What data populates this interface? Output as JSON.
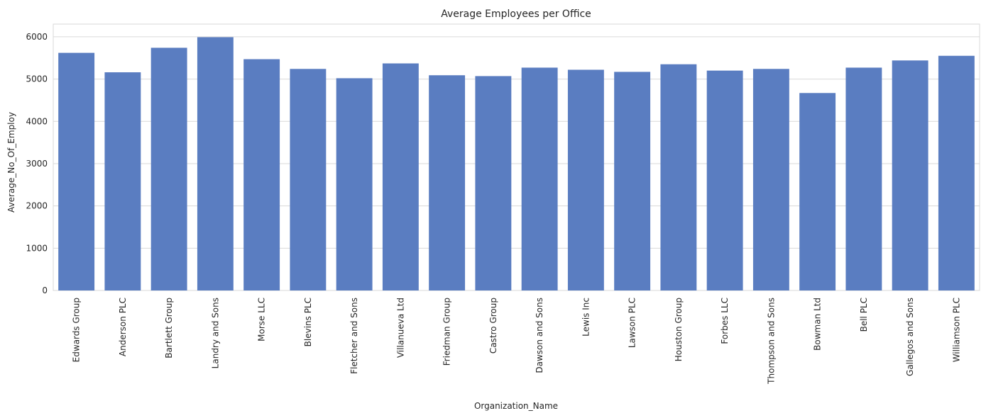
{
  "chart_data": {
    "type": "bar",
    "title": "Average Employees per Office",
    "xlabel": "Organization_Name",
    "ylabel": "Average_No_Of_Employ",
    "ylim": [
      0,
      6300
    ],
    "yticks": [
      0,
      1000,
      2000,
      3000,
      4000,
      5000,
      6000
    ],
    "grid": "horizontal",
    "bar_color": "#5a7dc1",
    "categories": [
      "Edwards Group",
      "Anderson PLC",
      "Bartlett Group",
      "Landry and Sons",
      "Morse LLC",
      "Blevins PLC",
      "Fletcher and Sons",
      "Villanueva Ltd",
      "Friedman Group",
      "Castro Group",
      "Dawson and Sons",
      "Lewis Inc",
      "Lawson PLC",
      "Houston Group",
      "Forbes LLC",
      "Thompson and Sons",
      "Bowman Ltd",
      "Bell PLC",
      "Gallegos and Sons",
      "Williamson PLC"
    ],
    "values": [
      5620,
      5160,
      5740,
      5990,
      5470,
      5240,
      5020,
      5370,
      5090,
      5070,
      5270,
      5220,
      5170,
      5350,
      5200,
      5240,
      4670,
      5270,
      5440,
      5550
    ]
  }
}
